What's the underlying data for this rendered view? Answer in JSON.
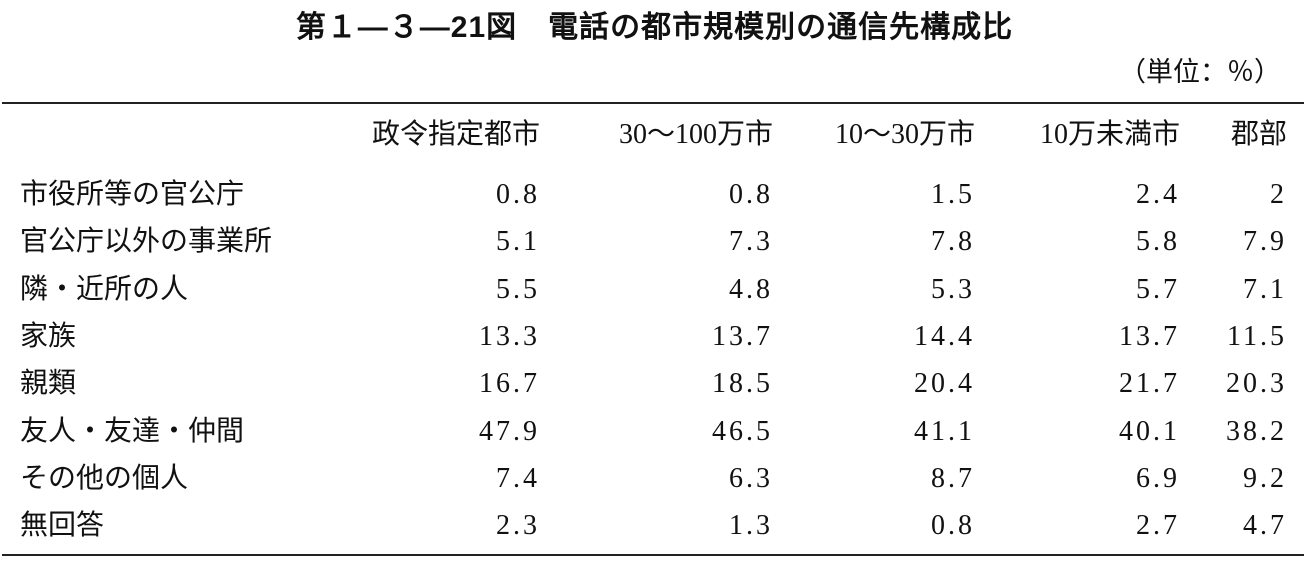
{
  "header": {
    "title": "第１—３—21図　電話の都市規模別の通信先構成比",
    "unit": "（単位：％）"
  },
  "table": {
    "columns": [
      "政令指定都市",
      "30～100万市",
      "10～30万市",
      "10万未満市",
      "郡部"
    ],
    "rows": [
      [
        "市役所等の官公庁",
        "0.8",
        "0.8",
        "1.5",
        "2.4",
        "2"
      ],
      [
        "官公庁以外の事業所",
        "5.1",
        "7.3",
        "7.8",
        "5.8",
        "7.9"
      ],
      [
        "隣・近所の人",
        "5.5",
        "4.8",
        "5.3",
        "5.7",
        "7.1"
      ],
      [
        "家族",
        "13.3",
        "13.7",
        "14.4",
        "13.7",
        "11.5"
      ],
      [
        "親類",
        "16.7",
        "18.5",
        "20.4",
        "21.7",
        "20.3"
      ],
      [
        "友人・友達・仲間",
        "47.9",
        "46.5",
        "41.1",
        "40.1",
        "38.2"
      ],
      [
        "その他の個人",
        "7.4",
        "6.3",
        "8.7",
        "6.9",
        "9.2"
      ],
      [
        "無回答",
        "2.3",
        "1.3",
        "0.8",
        "2.7",
        "4.7"
      ]
    ]
  }
}
